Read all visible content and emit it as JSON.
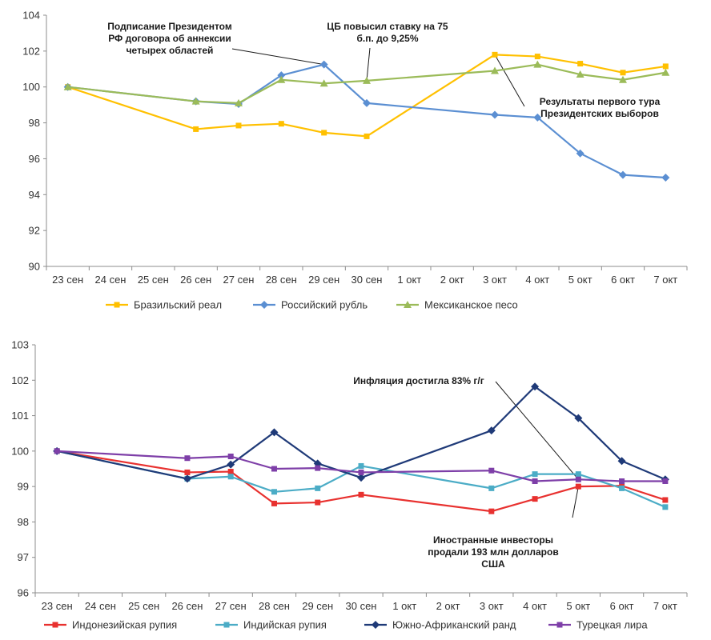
{
  "chart_data": [
    {
      "type": "line",
      "categories": [
        "23 сен",
        "24 сен",
        "25 сен",
        "26 сен",
        "27 сен",
        "28 сен",
        "29 сен",
        "30 сен",
        "1 окт",
        "2 окт",
        "3 окт",
        "4 окт",
        "5 окт",
        "6 окт",
        "7 окт"
      ],
      "yticks": [
        "90",
        "92",
        "94",
        "96",
        "98",
        "100",
        "102",
        "104"
      ],
      "ylim": [
        90,
        104
      ],
      "series": [
        {
          "name": "Бразильский реал",
          "color": "#FFC000",
          "marker": "square",
          "values": [
            100.0,
            null,
            null,
            97.65,
            97.85,
            97.95,
            97.45,
            97.25,
            null,
            null,
            101.8,
            101.7,
            101.3,
            100.8,
            101.15
          ]
        },
        {
          "name": "Российский рубль",
          "color": "#5B8FD2",
          "marker": "diamond",
          "values": [
            100.0,
            null,
            null,
            99.2,
            99.05,
            100.65,
            101.25,
            99.1,
            null,
            null,
            98.45,
            98.3,
            96.3,
            95.1,
            94.95
          ]
        },
        {
          "name": "Мексиканское песо",
          "color": "#9BBB59",
          "marker": "triangle",
          "values": [
            100.0,
            null,
            null,
            99.2,
            99.1,
            100.4,
            100.2,
            100.35,
            null,
            null,
            100.9,
            101.25,
            100.7,
            100.4,
            100.8
          ]
        }
      ],
      "annotations": [
        {
          "lines": [
            "Подписание Президентом",
            "РФ договора об аннексии",
            "четырех областей"
          ],
          "category": "29 сен",
          "value": 101.25
        },
        {
          "lines": [
            "ЦБ повысил ставку на 75",
            "б.п. до 9,25%"
          ],
          "category": "30 сен",
          "value": 100.35
        },
        {
          "lines": [
            "Результаты первого тура",
            "Президентских выборов"
          ],
          "category": "3 окт",
          "value": 101.8
        }
      ]
    },
    {
      "type": "line",
      "categories": [
        "23 сен",
        "24 сен",
        "25 сен",
        "26 сен",
        "27 сен",
        "28 сен",
        "29 сен",
        "30 сен",
        "1 окт",
        "2 окт",
        "3 окт",
        "4 окт",
        "5 окт",
        "6 окт",
        "7 окт"
      ],
      "yticks": [
        "96",
        "97",
        "98",
        "99",
        "100",
        "101",
        "102",
        "103"
      ],
      "ylim": [
        96,
        103
      ],
      "series": [
        {
          "name": "Индонезийская рупия",
          "color": "#E8312F",
          "marker": "square",
          "values": [
            100.0,
            null,
            null,
            99.4,
            99.42,
            98.52,
            98.55,
            98.77,
            null,
            null,
            98.3,
            98.65,
            99.0,
            99.02,
            98.62
          ]
        },
        {
          "name": "Индийская рупия",
          "color": "#4BACC6",
          "marker": "square",
          "values": [
            100.0,
            null,
            null,
            99.22,
            99.28,
            98.85,
            98.95,
            99.58,
            null,
            null,
            98.95,
            99.35,
            99.35,
            98.95,
            98.42
          ]
        },
        {
          "name": "Южно-Африканский ранд",
          "color": "#1F3A78",
          "marker": "diamond",
          "values": [
            100.0,
            null,
            null,
            99.22,
            99.62,
            100.53,
            99.65,
            99.25,
            null,
            null,
            100.58,
            101.82,
            100.93,
            99.72,
            99.2
          ]
        },
        {
          "name": "Турецкая лира",
          "color": "#7E3FA8",
          "marker": "square",
          "values": [
            100.0,
            null,
            null,
            99.8,
            99.85,
            99.5,
            99.52,
            99.4,
            null,
            null,
            99.45,
            99.15,
            99.2,
            99.15,
            99.15
          ]
        }
      ],
      "annotations": [
        {
          "lines": [
            "Инфляция достигла 83% г/г"
          ],
          "category": "5 окт",
          "value": 99.2
        },
        {
          "lines": [
            "Иностранные инвесторы",
            "продали 193 млн долларов",
            "США"
          ],
          "category": "5 окт",
          "value": 99.0
        }
      ]
    }
  ]
}
